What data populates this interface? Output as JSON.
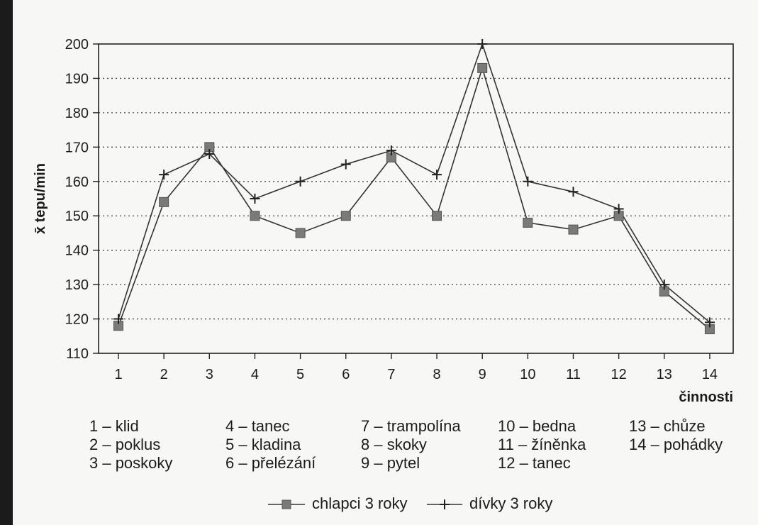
{
  "chart_data": {
    "type": "line",
    "ylabel": "x̄ tepu/min",
    "xlabel": "činnosti",
    "ylim": [
      110,
      200
    ],
    "yticks": [
      110,
      120,
      130,
      140,
      150,
      160,
      170,
      180,
      190,
      200
    ],
    "x": [
      1,
      2,
      3,
      4,
      5,
      6,
      7,
      8,
      9,
      10,
      11,
      12,
      13,
      14
    ],
    "grid": "horizontal dotted",
    "series": [
      {
        "name": "chlapci 3 roky",
        "marker": "square",
        "values": [
          118,
          154,
          170,
          150,
          145,
          150,
          167,
          150,
          193,
          148,
          146,
          150,
          128,
          117
        ]
      },
      {
        "name": "dívky 3 roky",
        "marker": "plus",
        "values": [
          120,
          162,
          168,
          155,
          160,
          165,
          169,
          162,
          200,
          160,
          157,
          152,
          130,
          119
        ]
      }
    ],
    "activity_legend": [
      "1 – klid",
      "2 – poklus",
      "3 – poskoky",
      "4 – tanec",
      "5 – kladina",
      "6 – přelézání",
      "7 – trampolína",
      "8 – skoky",
      "9 – pytel",
      "10 – bedna",
      "11 – žíněnka",
      "12 – tanec",
      "13 – chůze",
      "14 – pohádky"
    ]
  }
}
